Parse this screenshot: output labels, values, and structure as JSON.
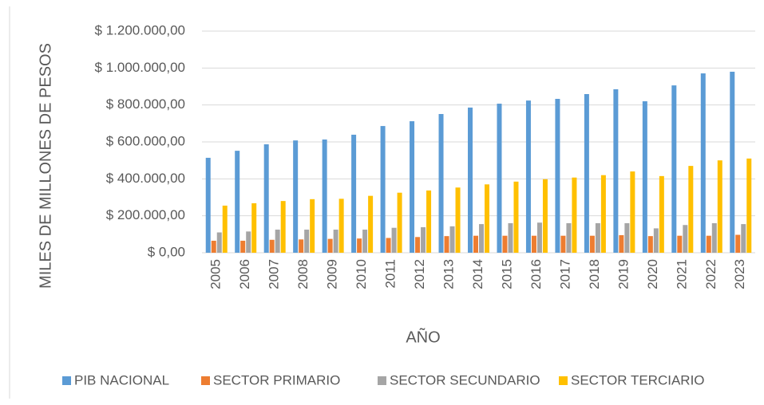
{
  "chart_data": {
    "type": "bar",
    "y_label": "MILES DE MILLONES DE PESOS",
    "x_label": "AÑO",
    "categories": [
      "2005",
      "2006",
      "2007",
      "2008",
      "2009",
      "2010",
      "2011",
      "2012",
      "2013",
      "2014",
      "2015",
      "2016",
      "2017",
      "2018",
      "2019",
      "2020",
      "2021",
      "2022",
      "2023"
    ],
    "series": [
      {
        "name": "PIB NACIONAL",
        "color": "#5b9bd5",
        "values": [
          514000,
          552000,
          587000,
          608000,
          613000,
          639000,
          686000,
          712000,
          751000,
          786000,
          807000,
          824000,
          833000,
          859000,
          885000,
          820000,
          906000,
          971000,
          980000
        ]
      },
      {
        "name": "SECTOR PRIMARIO",
        "color": "#ed7d31",
        "values": [
          65000,
          65000,
          70000,
          72000,
          75000,
          77000,
          80000,
          85000,
          90000,
          92000,
          92000,
          92000,
          92000,
          92000,
          95000,
          90000,
          92000,
          92000,
          97000
        ]
      },
      {
        "name": "SECTOR SECUNDARIO",
        "color": "#a5a5a5",
        "values": [
          110000,
          115000,
          125000,
          125000,
          125000,
          125000,
          135000,
          138000,
          143000,
          155000,
          160000,
          163000,
          160000,
          160000,
          160000,
          132000,
          150000,
          160000,
          155000
        ]
      },
      {
        "name": "SECTOR TERCIARIO",
        "color": "#ffc000",
        "values": [
          255000,
          268000,
          280000,
          290000,
          292000,
          308000,
          325000,
          337000,
          353000,
          370000,
          385000,
          398000,
          407000,
          420000,
          440000,
          415000,
          470000,
          500000,
          510000
        ]
      }
    ],
    "ylim": [
      0,
      1200000
    ],
    "yticks": [
      {
        "value": 0,
        "label": "$ 0,00"
      },
      {
        "value": 200000,
        "label": "$ 200.000,00"
      },
      {
        "value": 400000,
        "label": "$ 400.000,00"
      },
      {
        "value": 600000,
        "label": "$ 600.000,00"
      },
      {
        "value": 800000,
        "label": "$ 800.000,00"
      },
      {
        "value": 1000000,
        "label": "$ 1.000.000,00"
      },
      {
        "value": 1200000,
        "label": "$ 1.200.000,00"
      }
    ],
    "grid": true,
    "legend": "bottom"
  }
}
